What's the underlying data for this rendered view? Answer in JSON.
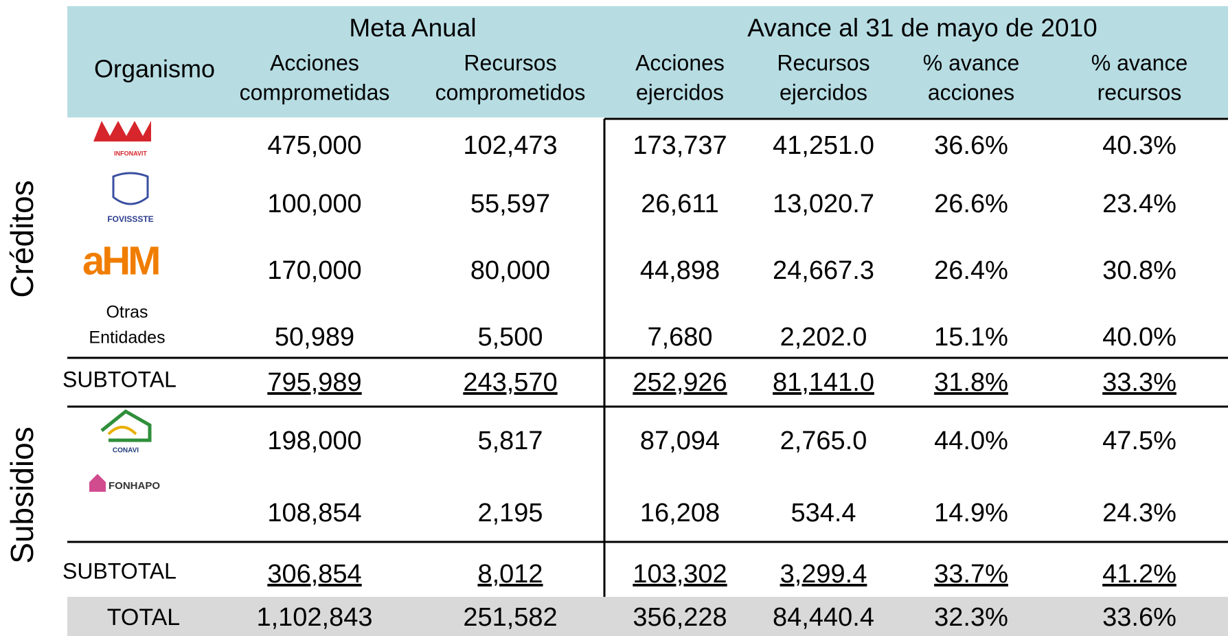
{
  "header": {
    "group_meta": "Meta Anual",
    "group_avance": "Avance al 31 de mayo de 2010",
    "organismo": "Organismo",
    "columns": [
      [
        "Acciones",
        "comprometidas"
      ],
      [
        "Recursos",
        "comprometidos"
      ],
      [
        "Acciones",
        "ejercidos"
      ],
      [
        "Recursos",
        "ejercidos"
      ],
      [
        "% avance",
        "acciones"
      ],
      [
        "% avance",
        "recursos"
      ]
    ]
  },
  "creditos": {
    "label": "Créditos",
    "rows": [
      {
        "organismo": [
          "INFONAVIT"
        ],
        "values": [
          "475,000",
          "102,473",
          "173,737",
          "41,251.0",
          "36.6%",
          "40.3%"
        ]
      },
      {
        "organismo": [
          "FOVISSSTE"
        ],
        "values": [
          "100,000",
          "55,597",
          "26,611",
          "13,020.7",
          "26.6%",
          "23.4%"
        ]
      },
      {
        "organismo": [
          "aHM"
        ],
        "values": [
          "170,000",
          "80,000",
          "44,898",
          "24,667.3",
          "26.4%",
          "30.8%"
        ]
      },
      {
        "organismo": [
          "Otras",
          "Entidades"
        ],
        "values": [
          "50,989",
          "5,500",
          "7,680",
          "2,202.0",
          "15.1%",
          "40.0%"
        ]
      }
    ],
    "subtotal": {
      "label": "SUBTOTAL",
      "values": [
        "795,989",
        "243,570",
        "252,926",
        "81,141.0",
        "31.8%",
        "33.3%"
      ]
    }
  },
  "subsidios": {
    "label": "Subsidios",
    "rows": [
      {
        "organismo": [
          "CONAVI"
        ],
        "values": [
          "198,000",
          "5,817",
          "87,094",
          "2,765.0",
          "44.0%",
          "47.5%"
        ]
      },
      {
        "organismo": [
          "FONHAPO"
        ],
        "values": [
          "108,854",
          "2,195",
          "16,208",
          "534.4",
          "14.9%",
          "24.3%"
        ]
      }
    ],
    "subtotal": {
      "label": "SUBTOTAL",
      "values": [
        "306,854",
        "8,012",
        "103,302",
        "3,299.4",
        "33.7%",
        "41.2%"
      ]
    }
  },
  "total": {
    "label": "TOTAL",
    "values": [
      "1,102,843",
      "251,582",
      "356,228",
      "84,440.4",
      "32.3%",
      "33.6%"
    ]
  }
}
